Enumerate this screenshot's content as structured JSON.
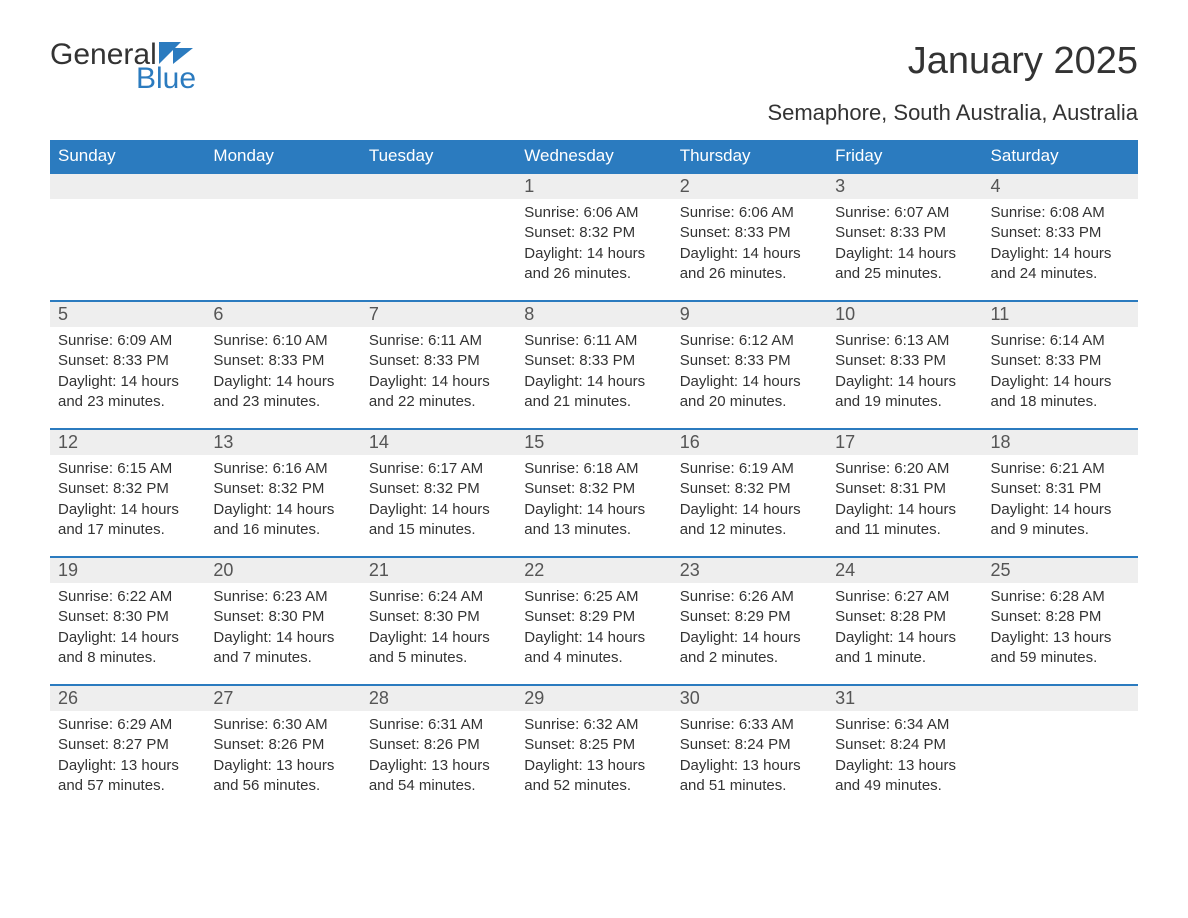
{
  "logo": {
    "text_general": "General",
    "text_blue": "Blue",
    "accent_color": "#2b7bbf"
  },
  "title": "January 2025",
  "subtitle": "Semaphore, South Australia, Australia",
  "colors": {
    "header_bg": "#2b7bbf",
    "header_text": "#ffffff",
    "daynum_bg": "#eeeeee",
    "body_text": "#333333",
    "page_bg": "#ffffff"
  },
  "fontsizes": {
    "title": 38,
    "subtitle": 22,
    "weekday": 17,
    "daynum": 18,
    "body": 15
  },
  "weekdays": [
    "Sunday",
    "Monday",
    "Tuesday",
    "Wednesday",
    "Thursday",
    "Friday",
    "Saturday"
  ],
  "weeks": [
    [
      null,
      null,
      null,
      {
        "num": "1",
        "sunrise": "Sunrise: 6:06 AM",
        "sunset": "Sunset: 8:32 PM",
        "daylight": "Daylight: 14 hours and 26 minutes."
      },
      {
        "num": "2",
        "sunrise": "Sunrise: 6:06 AM",
        "sunset": "Sunset: 8:33 PM",
        "daylight": "Daylight: 14 hours and 26 minutes."
      },
      {
        "num": "3",
        "sunrise": "Sunrise: 6:07 AM",
        "sunset": "Sunset: 8:33 PM",
        "daylight": "Daylight: 14 hours and 25 minutes."
      },
      {
        "num": "4",
        "sunrise": "Sunrise: 6:08 AM",
        "sunset": "Sunset: 8:33 PM",
        "daylight": "Daylight: 14 hours and 24 minutes."
      }
    ],
    [
      {
        "num": "5",
        "sunrise": "Sunrise: 6:09 AM",
        "sunset": "Sunset: 8:33 PM",
        "daylight": "Daylight: 14 hours and 23 minutes."
      },
      {
        "num": "6",
        "sunrise": "Sunrise: 6:10 AM",
        "sunset": "Sunset: 8:33 PM",
        "daylight": "Daylight: 14 hours and 23 minutes."
      },
      {
        "num": "7",
        "sunrise": "Sunrise: 6:11 AM",
        "sunset": "Sunset: 8:33 PM",
        "daylight": "Daylight: 14 hours and 22 minutes."
      },
      {
        "num": "8",
        "sunrise": "Sunrise: 6:11 AM",
        "sunset": "Sunset: 8:33 PM",
        "daylight": "Daylight: 14 hours and 21 minutes."
      },
      {
        "num": "9",
        "sunrise": "Sunrise: 6:12 AM",
        "sunset": "Sunset: 8:33 PM",
        "daylight": "Daylight: 14 hours and 20 minutes."
      },
      {
        "num": "10",
        "sunrise": "Sunrise: 6:13 AM",
        "sunset": "Sunset: 8:33 PM",
        "daylight": "Daylight: 14 hours and 19 minutes."
      },
      {
        "num": "11",
        "sunrise": "Sunrise: 6:14 AM",
        "sunset": "Sunset: 8:33 PM",
        "daylight": "Daylight: 14 hours and 18 minutes."
      }
    ],
    [
      {
        "num": "12",
        "sunrise": "Sunrise: 6:15 AM",
        "sunset": "Sunset: 8:32 PM",
        "daylight": "Daylight: 14 hours and 17 minutes."
      },
      {
        "num": "13",
        "sunrise": "Sunrise: 6:16 AM",
        "sunset": "Sunset: 8:32 PM",
        "daylight": "Daylight: 14 hours and 16 minutes."
      },
      {
        "num": "14",
        "sunrise": "Sunrise: 6:17 AM",
        "sunset": "Sunset: 8:32 PM",
        "daylight": "Daylight: 14 hours and 15 minutes."
      },
      {
        "num": "15",
        "sunrise": "Sunrise: 6:18 AM",
        "sunset": "Sunset: 8:32 PM",
        "daylight": "Daylight: 14 hours and 13 minutes."
      },
      {
        "num": "16",
        "sunrise": "Sunrise: 6:19 AM",
        "sunset": "Sunset: 8:32 PM",
        "daylight": "Daylight: 14 hours and 12 minutes."
      },
      {
        "num": "17",
        "sunrise": "Sunrise: 6:20 AM",
        "sunset": "Sunset: 8:31 PM",
        "daylight": "Daylight: 14 hours and 11 minutes."
      },
      {
        "num": "18",
        "sunrise": "Sunrise: 6:21 AM",
        "sunset": "Sunset: 8:31 PM",
        "daylight": "Daylight: 14 hours and 9 minutes."
      }
    ],
    [
      {
        "num": "19",
        "sunrise": "Sunrise: 6:22 AM",
        "sunset": "Sunset: 8:30 PM",
        "daylight": "Daylight: 14 hours and 8 minutes."
      },
      {
        "num": "20",
        "sunrise": "Sunrise: 6:23 AM",
        "sunset": "Sunset: 8:30 PM",
        "daylight": "Daylight: 14 hours and 7 minutes."
      },
      {
        "num": "21",
        "sunrise": "Sunrise: 6:24 AM",
        "sunset": "Sunset: 8:30 PM",
        "daylight": "Daylight: 14 hours and 5 minutes."
      },
      {
        "num": "22",
        "sunrise": "Sunrise: 6:25 AM",
        "sunset": "Sunset: 8:29 PM",
        "daylight": "Daylight: 14 hours and 4 minutes."
      },
      {
        "num": "23",
        "sunrise": "Sunrise: 6:26 AM",
        "sunset": "Sunset: 8:29 PM",
        "daylight": "Daylight: 14 hours and 2 minutes."
      },
      {
        "num": "24",
        "sunrise": "Sunrise: 6:27 AM",
        "sunset": "Sunset: 8:28 PM",
        "daylight": "Daylight: 14 hours and 1 minute."
      },
      {
        "num": "25",
        "sunrise": "Sunrise: 6:28 AM",
        "sunset": "Sunset: 8:28 PM",
        "daylight": "Daylight: 13 hours and 59 minutes."
      }
    ],
    [
      {
        "num": "26",
        "sunrise": "Sunrise: 6:29 AM",
        "sunset": "Sunset: 8:27 PM",
        "daylight": "Daylight: 13 hours and 57 minutes."
      },
      {
        "num": "27",
        "sunrise": "Sunrise: 6:30 AM",
        "sunset": "Sunset: 8:26 PM",
        "daylight": "Daylight: 13 hours and 56 minutes."
      },
      {
        "num": "28",
        "sunrise": "Sunrise: 6:31 AM",
        "sunset": "Sunset: 8:26 PM",
        "daylight": "Daylight: 13 hours and 54 minutes."
      },
      {
        "num": "29",
        "sunrise": "Sunrise: 6:32 AM",
        "sunset": "Sunset: 8:25 PM",
        "daylight": "Daylight: 13 hours and 52 minutes."
      },
      {
        "num": "30",
        "sunrise": "Sunrise: 6:33 AM",
        "sunset": "Sunset: 8:24 PM",
        "daylight": "Daylight: 13 hours and 51 minutes."
      },
      {
        "num": "31",
        "sunrise": "Sunrise: 6:34 AM",
        "sunset": "Sunset: 8:24 PM",
        "daylight": "Daylight: 13 hours and 49 minutes."
      },
      null
    ]
  ]
}
